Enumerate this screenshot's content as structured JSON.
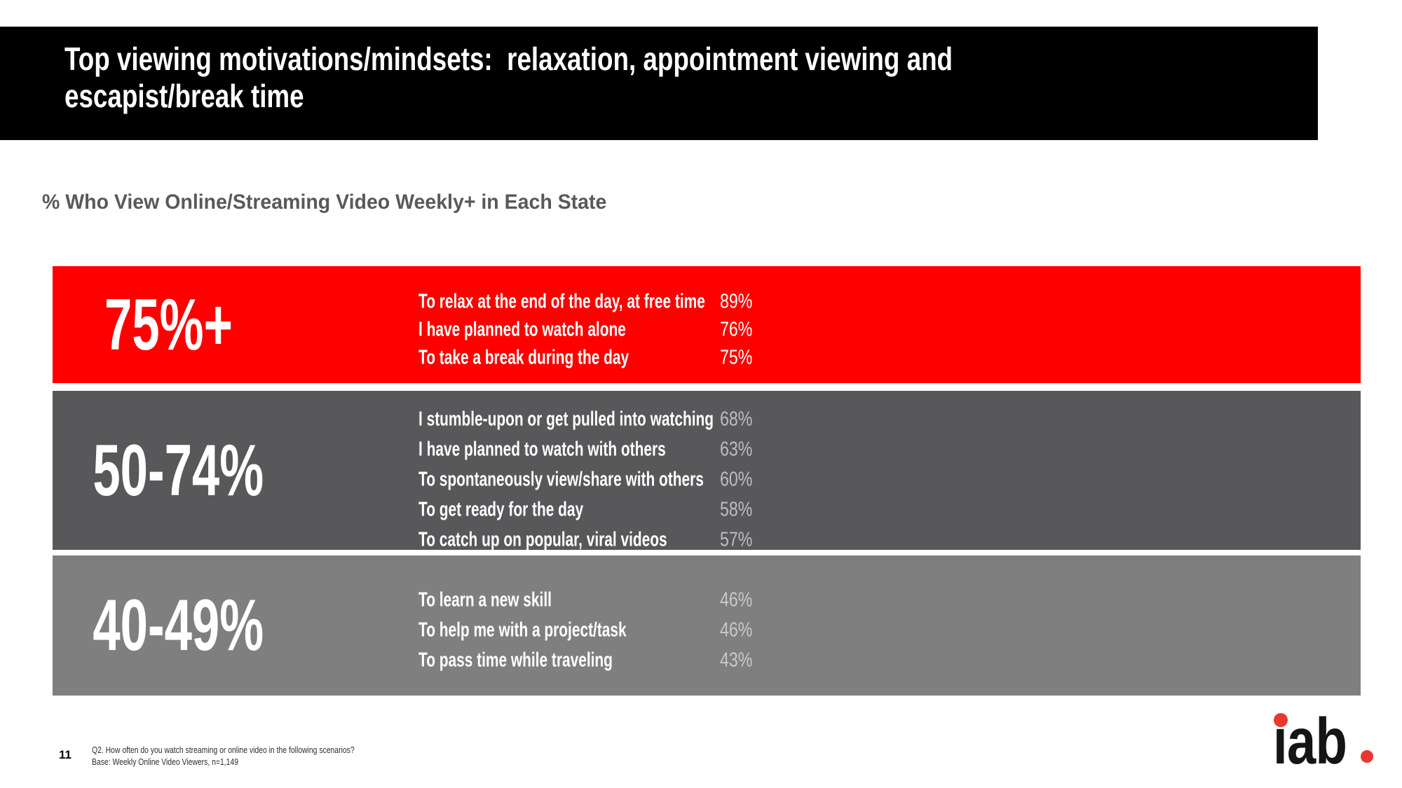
{
  "slide": {
    "page_number": "11",
    "title_lines": [
      "Top viewing motivations/mindsets:  relaxation, appointment viewing and",
      "escapist/break time"
    ],
    "subtitle": "% Who View Online/Streaming Video Weekly+ in Each State",
    "footnote_lines": [
      "Q2. How often do you watch streaming or online video in the following scenarios?",
      "Base: Weekly Online Video Viewers, n=1,149"
    ],
    "logo": {
      "text": "iab",
      "text_color": "#151515",
      "dot_color": "#E8392E"
    },
    "colors": {
      "banner_background": "#000000",
      "subtitle_text": "#595959",
      "accent_red": "#FE0000",
      "dark_gray": "#58585A",
      "light_gray": "#7F7F7F"
    }
  },
  "chart_data": {
    "type": "table",
    "title": "% Who View Online/Streaming Video Weekly+ in Each State",
    "groups": [
      {
        "range": "75%+",
        "color": "#FE0000",
        "items": [
          {
            "label": "To relax at the end of the day, at free time",
            "value": "89%"
          },
          {
            "label": "I have planned to watch alone",
            "value": "76%"
          },
          {
            "label": "To take a break during the day",
            "value": "75%"
          }
        ]
      },
      {
        "range": "50-74%",
        "color": "#58585A",
        "items": [
          {
            "label": "I stumble-upon or get pulled into watching",
            "value": "68%"
          },
          {
            "label": "I have planned to watch with others",
            "value": "63%"
          },
          {
            "label": "To spontaneously view/share with others",
            "value": "60%"
          },
          {
            "label": "To get ready for the day",
            "value": "58%"
          },
          {
            "label": "To catch up on popular, viral videos",
            "value": "57%"
          }
        ]
      },
      {
        "range": "40-49%",
        "color": "#7F7F7F",
        "items": [
          {
            "label": "To learn a new skill",
            "value": "46%"
          },
          {
            "label": "To help me with a project/task",
            "value": "46%"
          },
          {
            "label": "To pass time while traveling",
            "value": "43%"
          }
        ]
      }
    ]
  }
}
